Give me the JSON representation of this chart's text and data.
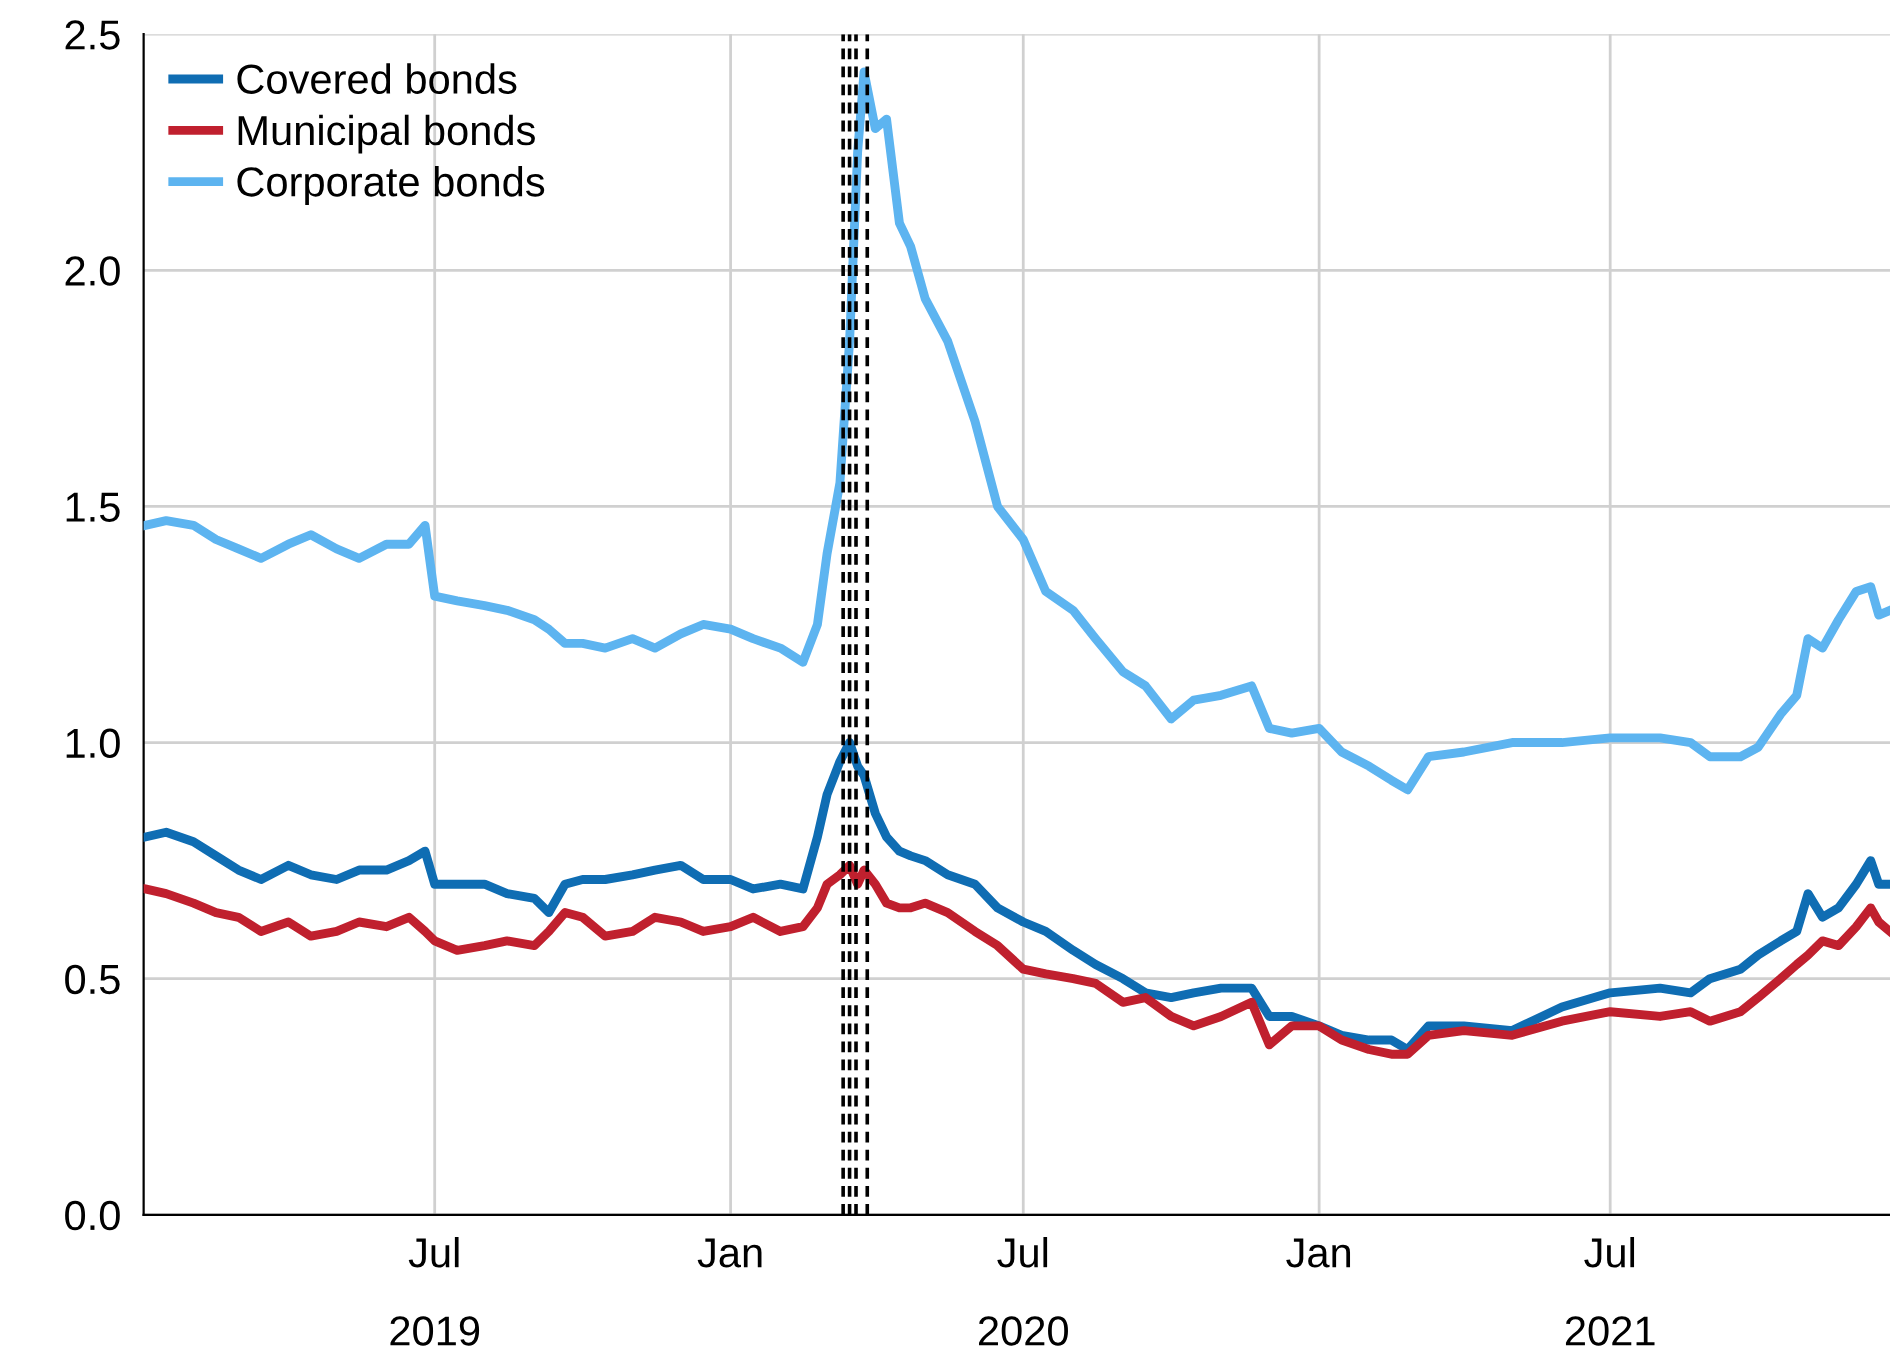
{
  "chart_data": {
    "type": "line",
    "x": [
      "2019-01-02",
      "2019-01-15",
      "2019-02-01",
      "2019-02-15",
      "2019-03-01",
      "2019-03-15",
      "2019-04-01",
      "2019-04-15",
      "2019-05-01",
      "2019-05-15",
      "2019-06-01",
      "2019-06-15",
      "2019-06-25",
      "2019-07-01",
      "2019-07-15",
      "2019-08-01",
      "2019-08-15",
      "2019-09-01",
      "2019-09-10",
      "2019-09-20",
      "2019-10-01",
      "2019-10-15",
      "2019-11-01",
      "2019-11-15",
      "2019-12-01",
      "2019-12-15",
      "2020-01-01",
      "2020-01-15",
      "2020-02-01",
      "2020-02-15",
      "2020-02-24",
      "2020-03-01",
      "2020-03-09",
      "2020-03-15",
      "2020-03-20",
      "2020-03-24",
      "2020-03-31",
      "2020-04-07",
      "2020-04-15",
      "2020-04-22",
      "2020-05-01",
      "2020-05-15",
      "2020-06-01",
      "2020-06-15",
      "2020-07-01",
      "2020-07-15",
      "2020-08-01",
      "2020-08-15",
      "2020-09-01",
      "2020-09-15",
      "2020-10-01",
      "2020-10-15",
      "2020-11-01",
      "2020-11-20",
      "2020-12-01",
      "2020-12-15",
      "2021-01-01",
      "2021-01-15",
      "2021-02-01",
      "2021-02-15",
      "2021-02-25",
      "2021-03-10",
      "2021-04-01",
      "2021-05-01",
      "2021-06-01",
      "2021-07-01",
      "2021-08-01",
      "2021-08-20",
      "2021-09-01",
      "2021-09-20",
      "2021-10-01",
      "2021-10-15",
      "2021-10-25",
      "2021-11-01",
      "2021-11-10",
      "2021-11-20",
      "2021-12-01",
      "2021-12-10",
      "2021-12-15",
      "2021-12-22"
    ],
    "series": [
      {
        "name": "Covered bonds",
        "color": "#0f6db3",
        "values": [
          0.8,
          0.81,
          0.79,
          0.76,
          0.73,
          0.71,
          0.74,
          0.72,
          0.71,
          0.73,
          0.73,
          0.75,
          0.77,
          0.7,
          0.7,
          0.7,
          0.68,
          0.67,
          0.64,
          0.7,
          0.71,
          0.71,
          0.72,
          0.73,
          0.74,
          0.71,
          0.71,
          0.69,
          0.7,
          0.69,
          0.8,
          0.89,
          0.96,
          1.0,
          0.95,
          0.93,
          0.85,
          0.8,
          0.77,
          0.76,
          0.75,
          0.72,
          0.7,
          0.65,
          0.62,
          0.6,
          0.56,
          0.53,
          0.5,
          0.47,
          0.46,
          0.47,
          0.48,
          0.48,
          0.42,
          0.42,
          0.4,
          0.38,
          0.37,
          0.37,
          0.35,
          0.4,
          0.4,
          0.39,
          0.44,
          0.47,
          0.48,
          0.47,
          0.5,
          0.52,
          0.55,
          0.58,
          0.6,
          0.68,
          0.63,
          0.65,
          0.7,
          0.75,
          0.7,
          0.7
        ]
      },
      {
        "name": "Municipal bonds",
        "color": "#c0202e",
        "values": [
          0.69,
          0.68,
          0.66,
          0.64,
          0.63,
          0.6,
          0.62,
          0.59,
          0.6,
          0.62,
          0.61,
          0.63,
          0.6,
          0.58,
          0.56,
          0.57,
          0.58,
          0.57,
          0.6,
          0.64,
          0.63,
          0.59,
          0.6,
          0.63,
          0.62,
          0.6,
          0.61,
          0.63,
          0.6,
          0.61,
          0.65,
          0.7,
          0.72,
          0.74,
          0.7,
          0.73,
          0.7,
          0.66,
          0.65,
          0.65,
          0.66,
          0.64,
          0.6,
          0.57,
          0.52,
          0.51,
          0.5,
          0.49,
          0.45,
          0.46,
          0.42,
          0.4,
          0.42,
          0.45,
          0.36,
          0.4,
          0.4,
          0.37,
          0.35,
          0.34,
          0.34,
          0.38,
          0.39,
          0.38,
          0.41,
          0.43,
          0.42,
          0.43,
          0.41,
          0.43,
          0.46,
          0.5,
          0.53,
          0.55,
          0.58,
          0.57,
          0.61,
          0.65,
          0.62,
          0.6
        ]
      },
      {
        "name": "Corporate bonds",
        "color": "#5db4f0",
        "values": [
          1.46,
          1.47,
          1.46,
          1.43,
          1.41,
          1.39,
          1.42,
          1.44,
          1.41,
          1.39,
          1.42,
          1.42,
          1.46,
          1.31,
          1.3,
          1.29,
          1.28,
          1.26,
          1.24,
          1.21,
          1.21,
          1.2,
          1.22,
          1.2,
          1.23,
          1.25,
          1.24,
          1.22,
          1.2,
          1.17,
          1.25,
          1.4,
          1.55,
          1.85,
          2.25,
          2.42,
          2.3,
          2.32,
          2.1,
          2.05,
          1.94,
          1.85,
          1.68,
          1.5,
          1.43,
          1.32,
          1.28,
          1.22,
          1.15,
          1.12,
          1.05,
          1.09,
          1.1,
          1.12,
          1.03,
          1.02,
          1.03,
          0.98,
          0.95,
          0.92,
          0.9,
          0.97,
          0.98,
          1.0,
          1.0,
          1.01,
          1.01,
          1.0,
          0.97,
          0.97,
          0.99,
          1.06,
          1.1,
          1.22,
          1.2,
          1.26,
          1.32,
          1.33,
          1.27,
          1.28
        ]
      }
    ],
    "xlim": [
      "2019-01-01",
      "2021-12-22"
    ],
    "xticks": [
      {
        "value": "2019-07-01",
        "label": "Jul\n2019"
      },
      {
        "value": "2020-01-01",
        "label": "Jan"
      },
      {
        "value": "2020-07-01",
        "label": "Jul\n2020"
      },
      {
        "value": "2021-01-01",
        "label": "Jan"
      },
      {
        "value": "2021-07-01",
        "label": "Jul\n2021"
      }
    ],
    "ylim": [
      0,
      2.5
    ],
    "yticks": [
      {
        "value": 0,
        "label": "0.0"
      },
      {
        "value": 0.5,
        "label": "0.5"
      },
      {
        "value": 1,
        "label": "1.0"
      },
      {
        "value": 1.5,
        "label": "1.5"
      },
      {
        "value": 2,
        "label": "2.0"
      },
      {
        "value": 2.5,
        "label": "2.5"
      }
    ],
    "ref_lines": [
      {
        "axis": "x",
        "value": "2020-03-11",
        "color": "#000000",
        "line_style": "dashed"
      },
      {
        "axis": "x",
        "value": "2020-03-15",
        "color": "#000000",
        "line_style": "dashed"
      },
      {
        "axis": "x",
        "value": "2020-03-19",
        "color": "#000000",
        "line_style": "dashed"
      },
      {
        "axis": "x",
        "value": "2020-03-26",
        "color": "#000000",
        "line_style": "dashed"
      }
    ],
    "grid": true,
    "legend": "top left",
    "line_style": "solid",
    "marker": "none"
  }
}
